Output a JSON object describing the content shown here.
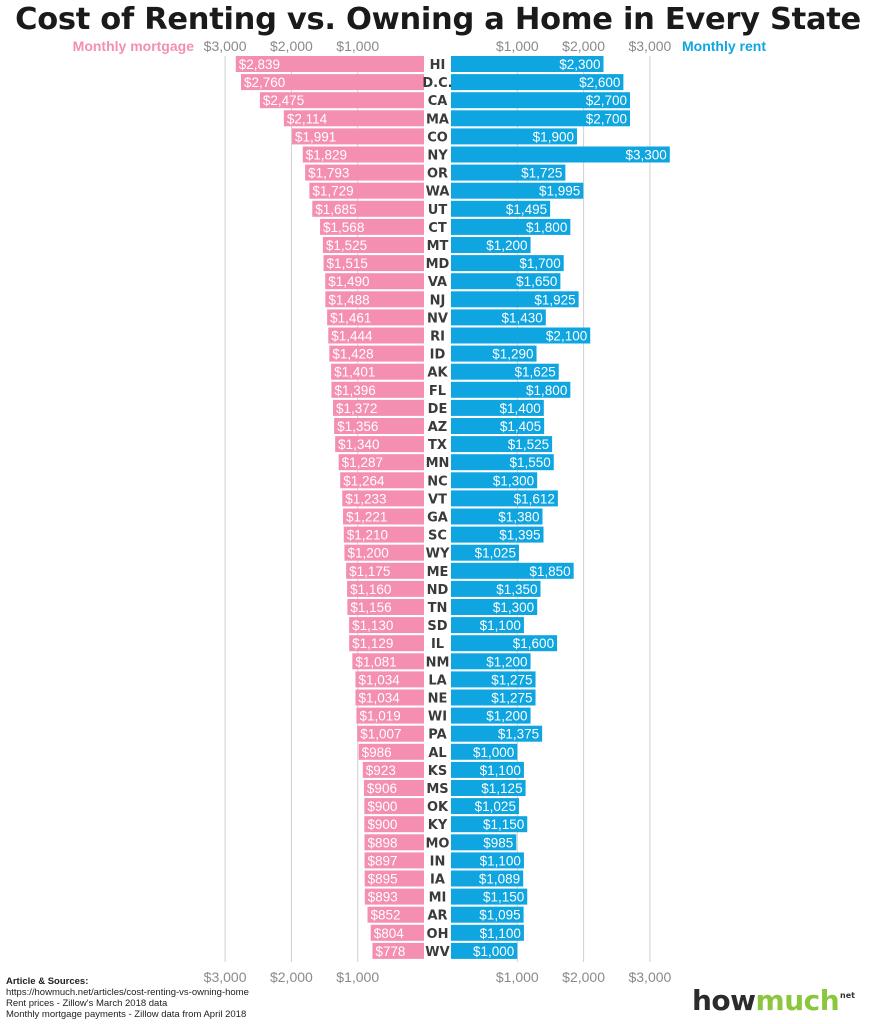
{
  "chart_data": {
    "type": "bar",
    "title": "Cost of Renting vs. Owning a Home in Every State",
    "orientation": "horizontal-diverging",
    "legend": {
      "left": {
        "label": "Monthly mortgage",
        "color": "#f48fb1"
      },
      "right": {
        "label": "Monthly rent",
        "color": "#0ea5e0"
      }
    },
    "xlim": [
      0,
      3000
    ],
    "ticks": [
      1000,
      2000,
      3000
    ],
    "tick_labels": [
      "$1,000",
      "$2,000",
      "$3,000"
    ],
    "grid": true,
    "categories": [
      "HI",
      "D.C.",
      "CA",
      "MA",
      "CO",
      "NY",
      "OR",
      "WA",
      "UT",
      "CT",
      "MT",
      "MD",
      "VA",
      "NJ",
      "NV",
      "RI",
      "ID",
      "AK",
      "FL",
      "DE",
      "AZ",
      "TX",
      "MN",
      "NC",
      "VT",
      "GA",
      "SC",
      "WY",
      "ME",
      "ND",
      "TN",
      "SD",
      "IL",
      "NM",
      "LA",
      "NE",
      "WI",
      "PA",
      "AL",
      "KS",
      "MS",
      "OK",
      "KY",
      "MO",
      "IN",
      "IA",
      "MI",
      "AR",
      "OH",
      "WV"
    ],
    "series": [
      {
        "name": "Monthly mortgage",
        "side": "left",
        "color": "#f48fb1",
        "values": [
          2839,
          2760,
          2475,
          2114,
          1991,
          1829,
          1793,
          1729,
          1685,
          1568,
          1525,
          1515,
          1490,
          1488,
          1461,
          1444,
          1428,
          1401,
          1396,
          1372,
          1356,
          1340,
          1287,
          1264,
          1233,
          1221,
          1210,
          1200,
          1175,
          1160,
          1156,
          1130,
          1129,
          1081,
          1034,
          1034,
          1019,
          1007,
          986,
          923,
          906,
          900,
          900,
          898,
          897,
          895,
          893,
          852,
          804,
          778
        ]
      },
      {
        "name": "Monthly rent",
        "side": "right",
        "color": "#0ea5e0",
        "values": [
          2300,
          2600,
          2700,
          2700,
          1900,
          3300,
          1725,
          1995,
          1495,
          1800,
          1200,
          1700,
          1650,
          1925,
          1430,
          2100,
          1290,
          1625,
          1800,
          1400,
          1405,
          1525,
          1550,
          1300,
          1612,
          1380,
          1395,
          1025,
          1850,
          1350,
          1300,
          1100,
          1600,
          1200,
          1275,
          1275,
          1200,
          1375,
          1000,
          1100,
          1125,
          1025,
          1150,
          985,
          1100,
          1089,
          1150,
          1095,
          1100,
          1000
        ]
      }
    ]
  },
  "sources": {
    "heading": "Article & Sources:",
    "lines": [
      "https://howmuch.net/articles/cost-renting-vs-owning-home",
      "Rent prices - Zillow's March 2018 data",
      "Monthly mortgage payments - Zillow data from April 2018"
    ]
  },
  "logo": {
    "how": "how",
    "much": "much",
    "suffix": "net"
  }
}
